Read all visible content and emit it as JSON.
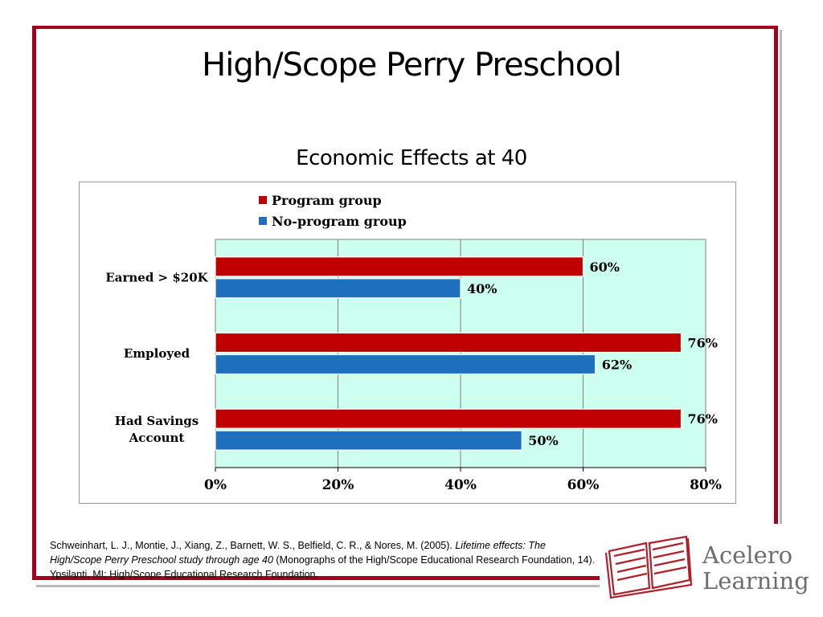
{
  "slide": {
    "title": "High/Scope Perry Preschool",
    "subtitle": "Economic Effects at 40"
  },
  "colors": {
    "frame": "#a3001e",
    "program": "#c00000",
    "no_program": "#1f6fbf",
    "plot_bg": "#ccfff0"
  },
  "chart_data": {
    "type": "bar",
    "orientation": "horizontal",
    "categories": [
      "Earned > $20K",
      "Employed",
      "Had Savings Account"
    ],
    "series": [
      {
        "name": "Program group",
        "values": [
          60,
          76,
          76
        ],
        "labels": [
          "60%",
          "76%",
          "76%"
        ]
      },
      {
        "name": "No-program group",
        "values": [
          40,
          62,
          50
        ],
        "labels": [
          "40%",
          "62%",
          "50%"
        ]
      }
    ],
    "xticks": [
      "0%",
      "20%",
      "40%",
      "60%",
      "80%"
    ],
    "xlim": [
      0,
      80
    ],
    "grid": true,
    "legend_position": "top"
  },
  "citation": {
    "part1": "Schweinhart, L. J., Montie, J., Xiang, Z., Barnett, W. S., Belfield, C. R., & Nores, M. (2005).  ",
    "italic": "Lifetime effects:  The High/Scope Perry Preschool study through age 40",
    "part2": " (Monographs of the High/Scope Educational Research Foundation, 14).  Ypsilanti, MI: High/Scope Educational Research Foundation."
  },
  "logo": {
    "line1": "Acelero",
    "line2": "Learning"
  }
}
